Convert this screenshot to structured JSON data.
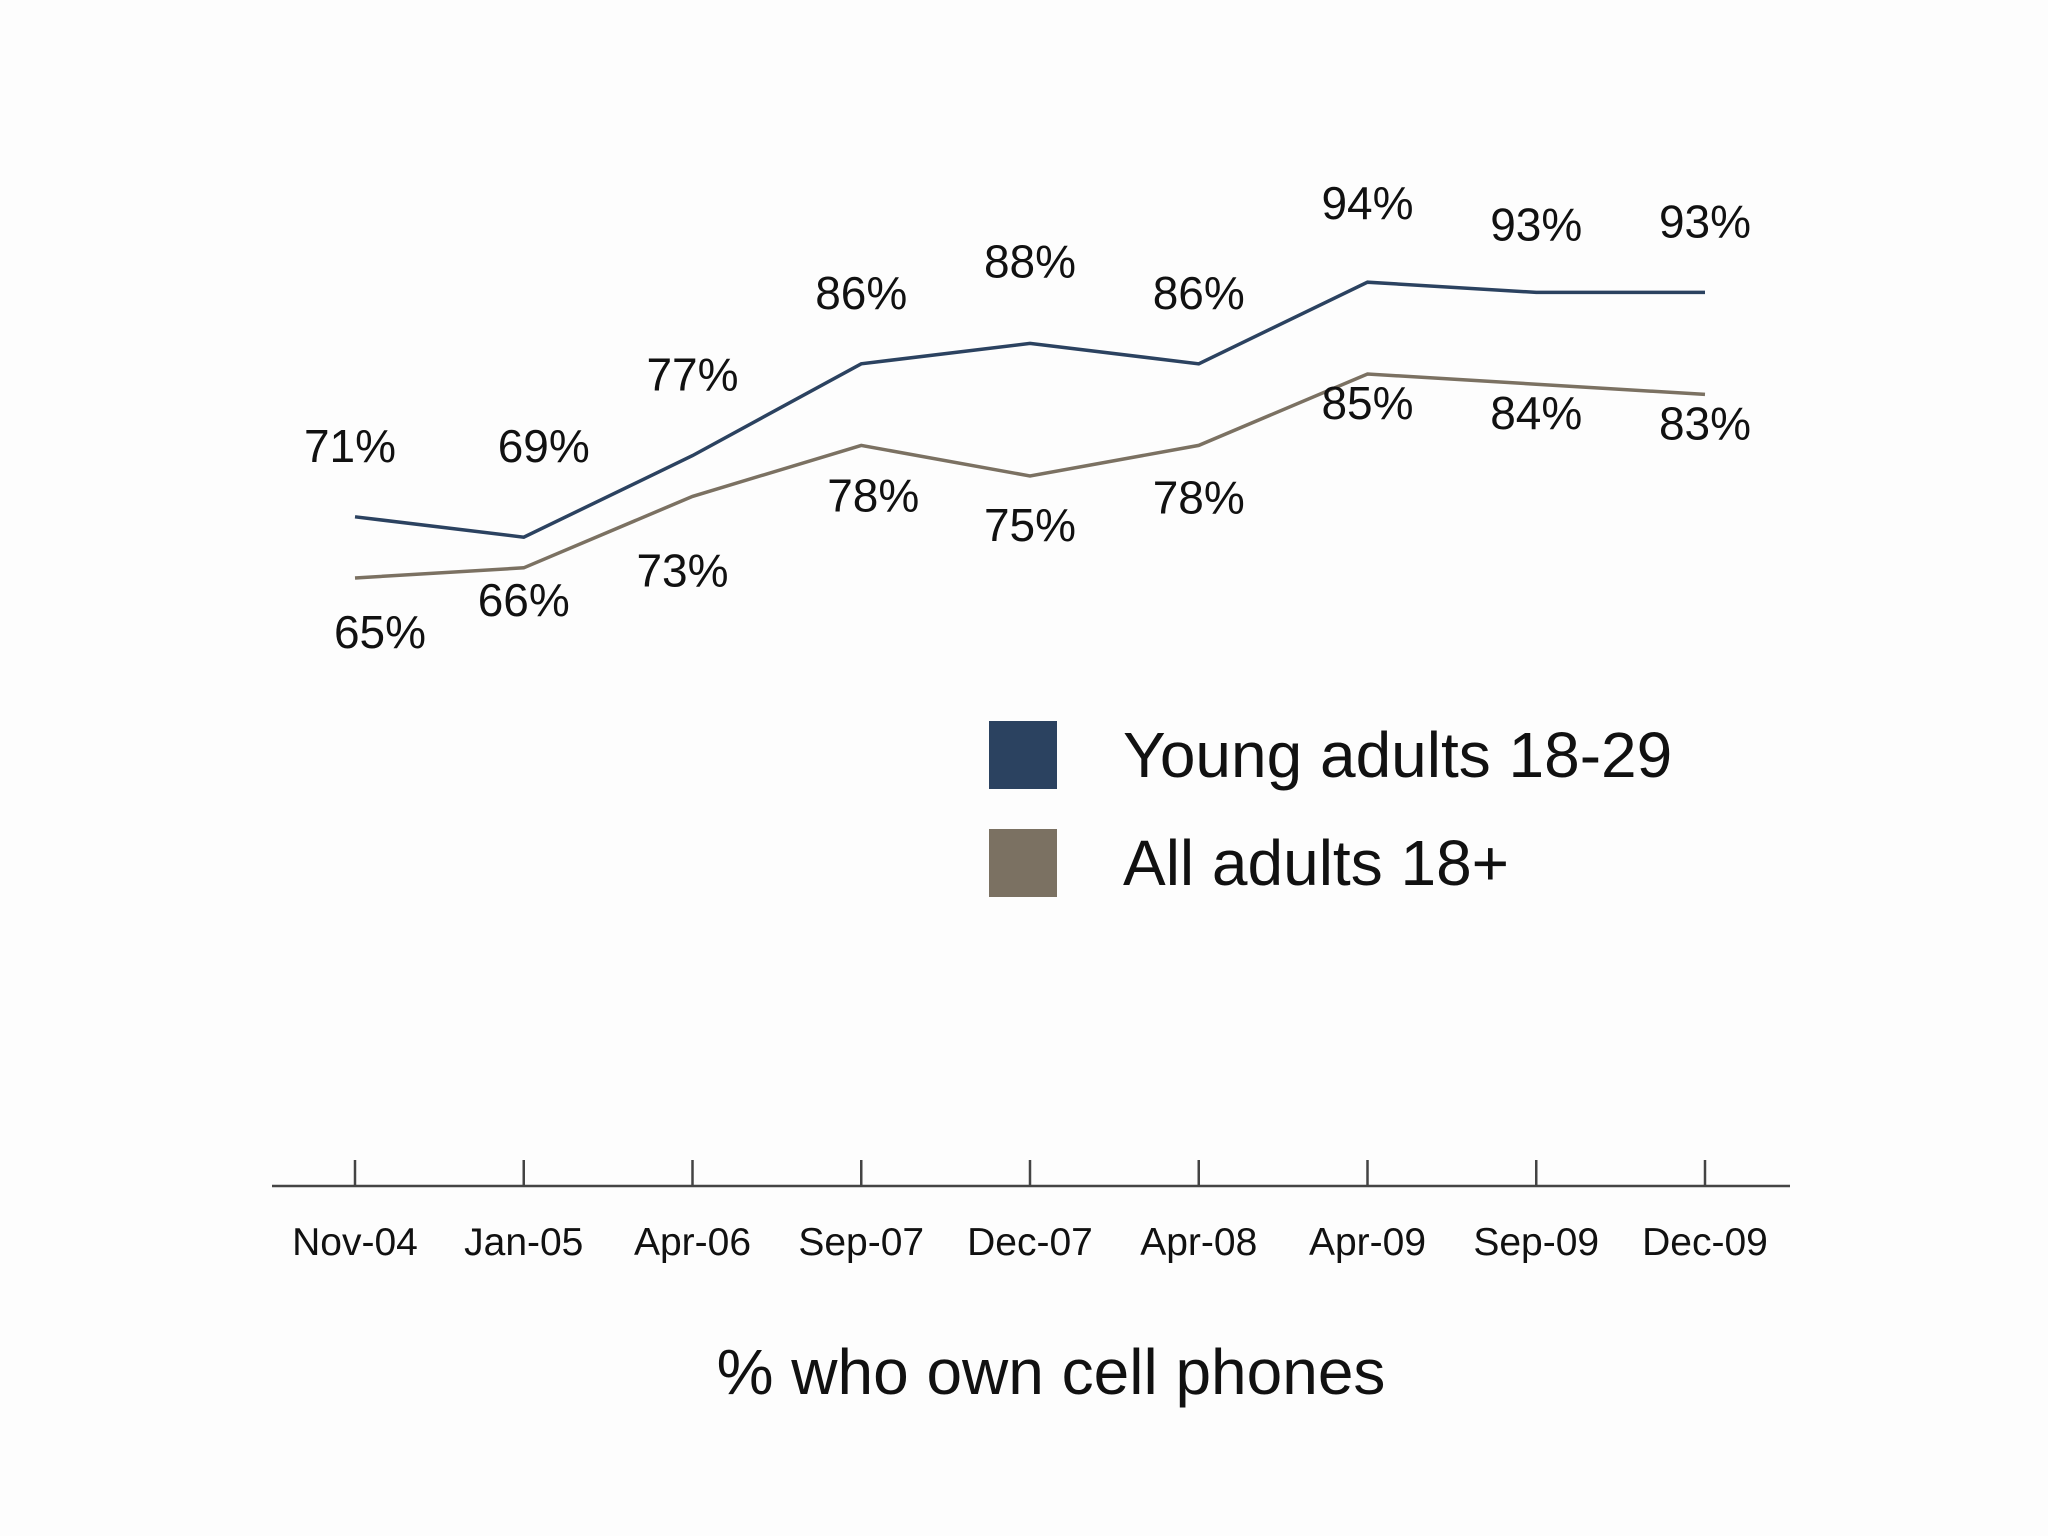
{
  "chart_data": {
    "type": "line",
    "title": "",
    "xlabel": "% who own cell phones",
    "ylabel": "",
    "categories": [
      "Nov-04",
      "Jan-05",
      "Apr-06",
      "Sep-07",
      "Dec-07",
      "Apr-08",
      "Apr-09",
      "Sep-09",
      "Dec-09"
    ],
    "series": [
      {
        "name": "Young adults 18-29",
        "color": "#2b4260",
        "values": [
          71,
          69,
          77,
          86,
          88,
          86,
          94,
          93,
          93
        ],
        "labels": [
          "71%",
          "69%",
          "77%",
          "86%",
          "88%",
          "86%",
          "94%",
          "93%",
          "93%"
        ]
      },
      {
        "name": "All adults 18+",
        "color": "#7b7162",
        "values": [
          65,
          66,
          73,
          78,
          75,
          78,
          85,
          84,
          83
        ],
        "labels": [
          "65%",
          "66%",
          "73%",
          "78%",
          "75%",
          "78%",
          "85%",
          "84%",
          "83%"
        ]
      }
    ],
    "grid": false,
    "y_axis_visible": false,
    "legend_position": "center-right"
  }
}
